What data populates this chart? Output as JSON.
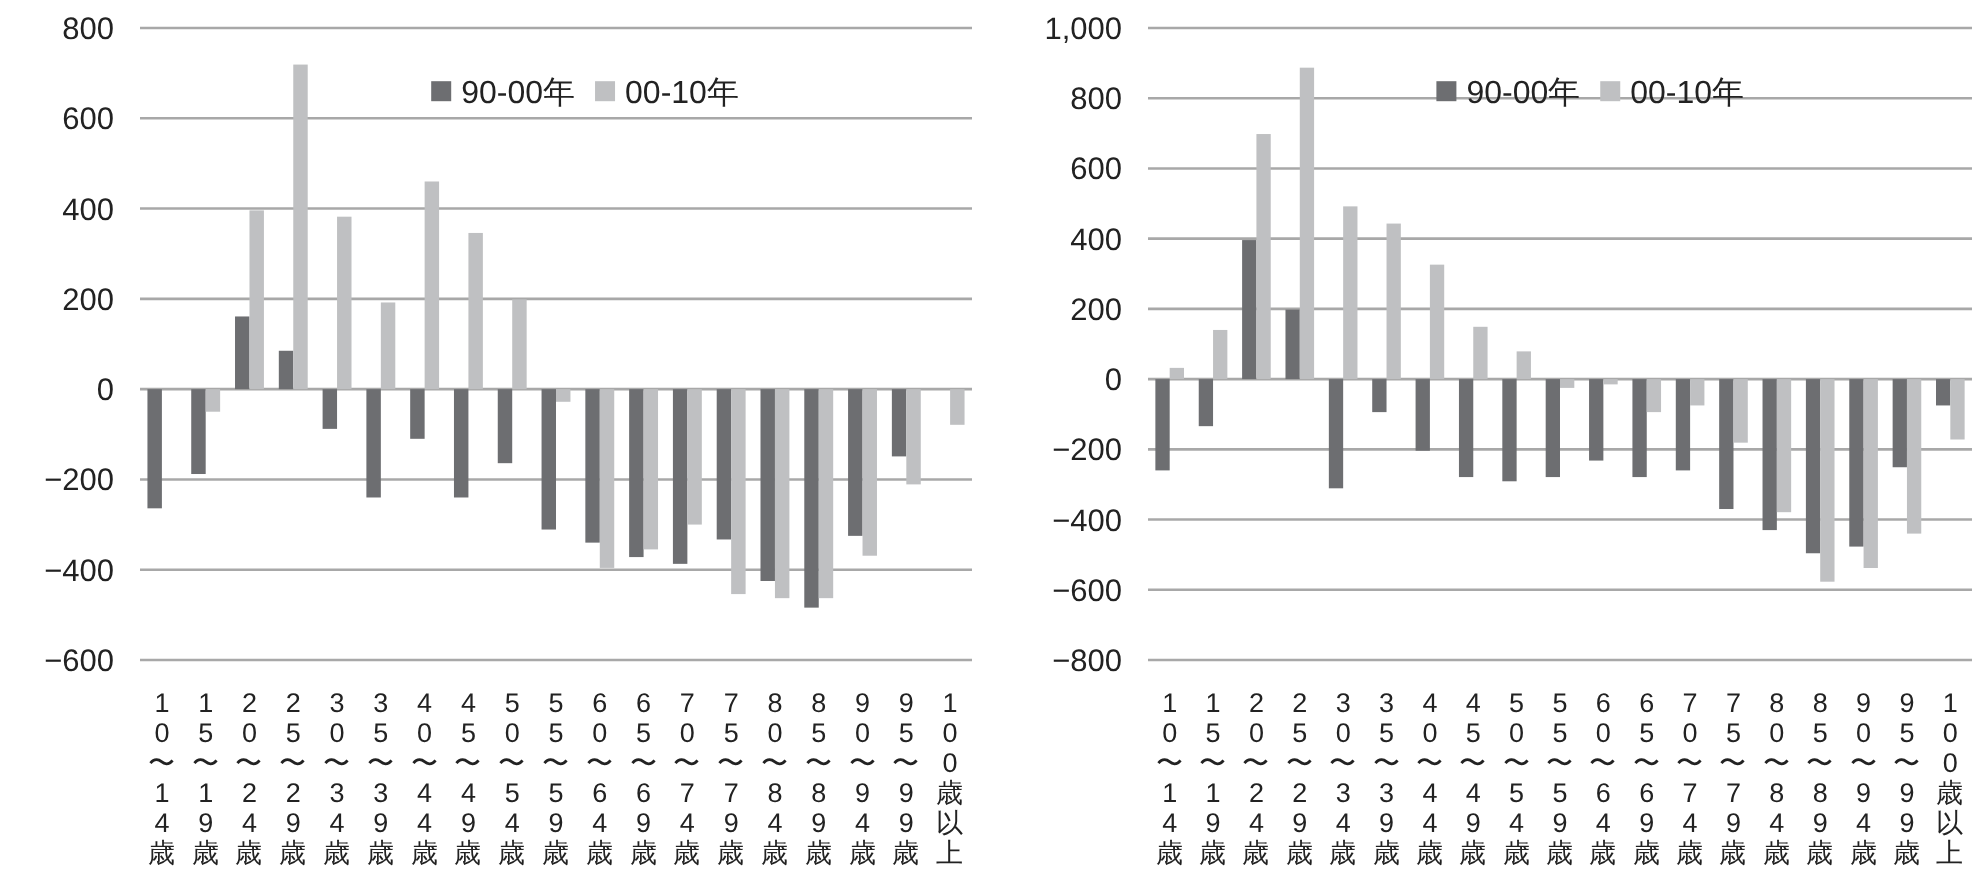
{
  "chart_data": [
    {
      "type": "bar",
      "categories": [
        "10〜14歳",
        "15〜19歳",
        "20〜24歳",
        "25〜29歳",
        "30〜34歳",
        "35〜39歳",
        "40〜44歳",
        "45〜49歳",
        "50〜54歳",
        "55〜59歳",
        "60〜64歳",
        "65〜69歳",
        "70〜74歳",
        "75〜79歳",
        "80〜84歳",
        "85〜89歳",
        "90〜94歳",
        "95〜99歳",
        "100歳以上"
      ],
      "series": [
        {
          "name": "90-00年",
          "color": "#6d6e71",
          "values": [
            -264,
            -188,
            161,
            85,
            -88,
            -240,
            -110,
            -240,
            -164,
            -311,
            -340,
            -372,
            -387,
            -333,
            -425,
            -484,
            -325,
            -149,
            null
          ]
        },
        {
          "name": "00-10年",
          "color": "#bfc0c2",
          "values": [
            0,
            -50,
            396,
            719,
            382,
            192,
            460,
            346,
            199,
            -28,
            -396,
            -355,
            -300,
            -454,
            -463,
            -463,
            -369,
            -211,
            -79
          ]
        }
      ],
      "ylim": [
        -600,
        800
      ],
      "yticks": [
        -600,
        -400,
        -200,
        0,
        200,
        400,
        600,
        800
      ],
      "grid": "y",
      "legend": "top"
    },
    {
      "type": "bar",
      "categories": [
        "10〜14歳",
        "15〜19歳",
        "20〜24歳",
        "25〜29歳",
        "30〜34歳",
        "35〜39歳",
        "40〜44歳",
        "45〜49歳",
        "50〜54歳",
        "55〜59歳",
        "60〜64歳",
        "65〜69歳",
        "70〜74歳",
        "75〜79歳",
        "80〜84歳",
        "85〜89歳",
        "90〜94歳",
        "95〜99歳",
        "100歳以上"
      ],
      "series": [
        {
          "name": "90-00年",
          "color": "#6d6e71",
          "values": [
            -260,
            -134,
            396,
            198,
            -311,
            -94,
            -204,
            -279,
            -291,
            -279,
            -232,
            -279,
            -260,
            -370,
            -430,
            -496,
            -477,
            -251,
            -75
          ]
        },
        {
          "name": "00-10年",
          "color": "#bfc0c2",
          "values": [
            32,
            140,
            698,
            887,
            492,
            443,
            326,
            149,
            79,
            -25,
            -15,
            -94,
            -75,
            -181,
            -379,
            -577,
            -538,
            -440,
            -172
          ]
        }
      ],
      "ylim": [
        -800,
        1000
      ],
      "yticks": [
        -800,
        -600,
        -400,
        -200,
        0,
        200,
        400,
        600,
        800,
        {
          "value": 1000,
          "label": "1,000"
        }
      ],
      "grid": "y",
      "legend": "top"
    }
  ]
}
